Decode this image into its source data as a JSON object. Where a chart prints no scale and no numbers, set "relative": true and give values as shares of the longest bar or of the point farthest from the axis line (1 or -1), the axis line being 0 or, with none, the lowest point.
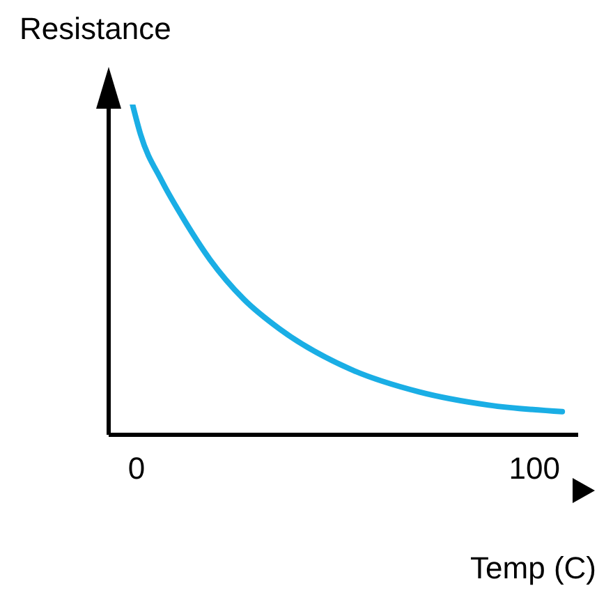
{
  "chart_data": {
    "type": "line",
    "xlabel": "Temp (C)",
    "ylabel": "Resistance",
    "relative": true,
    "xlim": [
      -7,
      111
    ],
    "xticks": [
      0,
      100
    ],
    "series": [
      {
        "color": "#1aaee5",
        "x": [
          -1,
          1,
          6.3,
          11.5,
          18.5,
          27,
          36,
          53.5,
          71,
          88.5,
          107
        ],
        "values": [
          1,
          0.91,
          0.77,
          0.66,
          0.53,
          0.41,
          0.32,
          0.2,
          0.13,
          0.09,
          0.07
        ]
      }
    ]
  }
}
